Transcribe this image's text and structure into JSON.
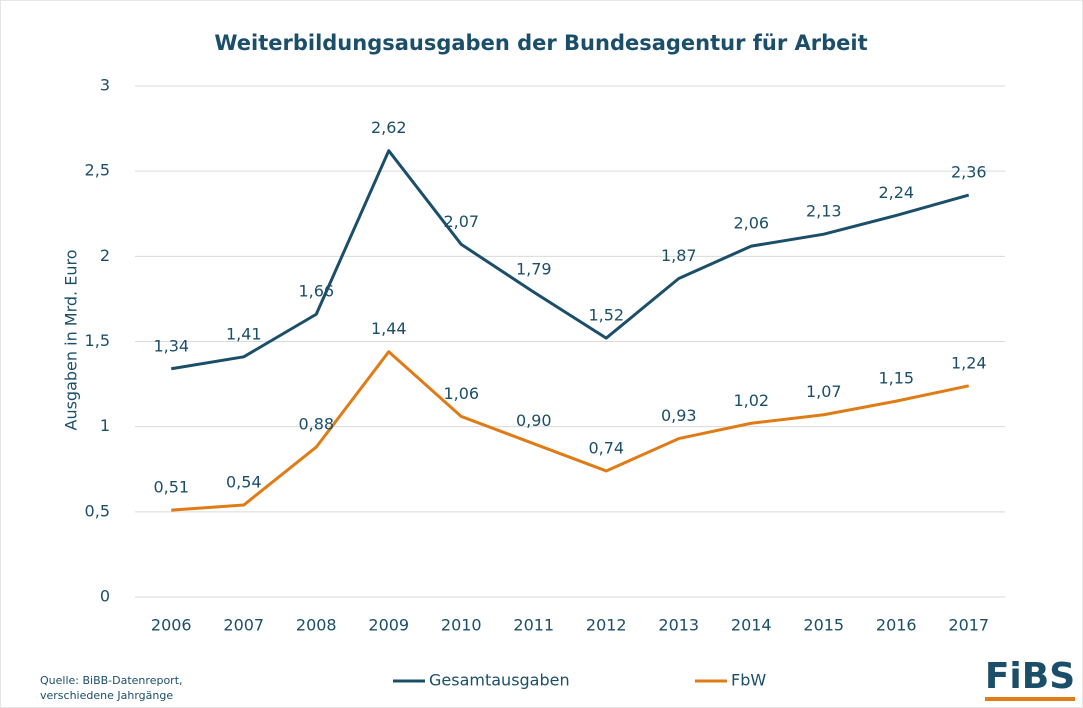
{
  "chart_data": {
    "type": "line",
    "title": "Weiterbildungsausgaben der Bundesagentur für Arbeit",
    "y_label": "Ausgaben in Mrd. Euro",
    "categories": [
      "2006",
      "2007",
      "2008",
      "2009",
      "2010",
      "2011",
      "2012",
      "2013",
      "2014",
      "2015",
      "2016",
      "2017"
    ],
    "series": [
      {
        "name": "Gesamtausgaben",
        "color": "#1b4f69",
        "values": [
          1.34,
          1.41,
          1.66,
          2.62,
          2.07,
          1.79,
          1.52,
          1.87,
          2.06,
          2.13,
          2.24,
          2.36
        ],
        "value_labels": [
          "1,34",
          "1,41",
          "1,66",
          "2,62",
          "2,07",
          "1,79",
          "1,52",
          "1,87",
          "2,06",
          "2,13",
          "2,24",
          "2,36"
        ]
      },
      {
        "name": "FbW",
        "color": "#e07c16",
        "values": [
          0.51,
          0.54,
          0.88,
          1.44,
          1.06,
          0.9,
          0.74,
          0.93,
          1.02,
          1.07,
          1.15,
          1.24
        ],
        "value_labels": [
          "0,51",
          "0,54",
          "0,88",
          "1,44",
          "1,06",
          "0,90",
          "0,74",
          "0,93",
          "1,02",
          "1,07",
          "1,15",
          "1,24"
        ]
      }
    ],
    "ylim": [
      0,
      3
    ],
    "yticks": [
      0,
      {
        "value": 0.5,
        "label": "0,5"
      },
      1,
      {
        "value": 1.5,
        "label": "1,5"
      },
      2,
      {
        "value": 2.5,
        "label": "2,5"
      },
      3
    ],
    "grid": true,
    "legend": "bottom",
    "source": [
      "Quelle: BiBB-Datenreport,",
      "verschiedene Jahrgänge"
    ],
    "logo": "FiBS"
  }
}
